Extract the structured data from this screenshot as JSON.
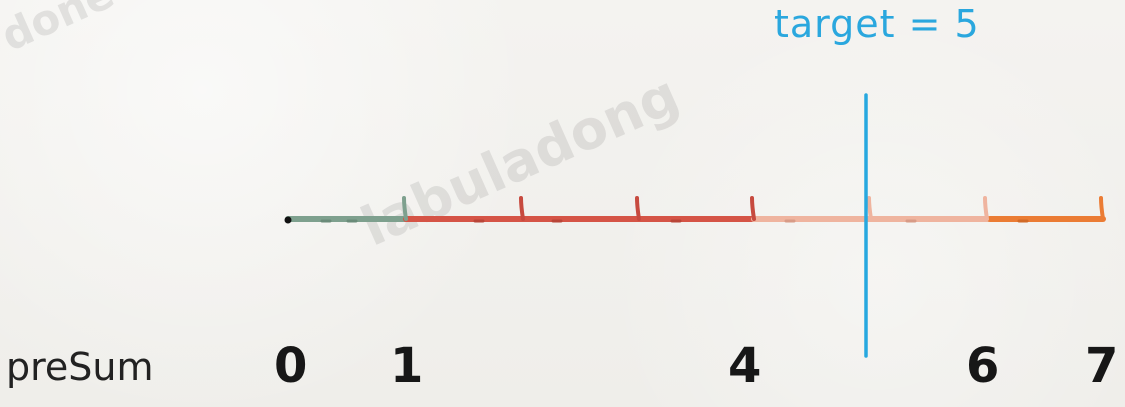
{
  "diagram": {
    "target_label": "target = 5",
    "row_label": "preSum",
    "values": [
      "0",
      "1",
      "4",
      "6",
      "7"
    ],
    "colors": {
      "segment_1": "#7ea08e",
      "segment_2": "#d55446",
      "segment_3": "#efb49f",
      "segment_4": "#eb7c34",
      "target_line": "#27a8df",
      "tick": "#c74a3f"
    }
  },
  "watermark": {
    "main": "labuladong",
    "corner": "done"
  }
}
